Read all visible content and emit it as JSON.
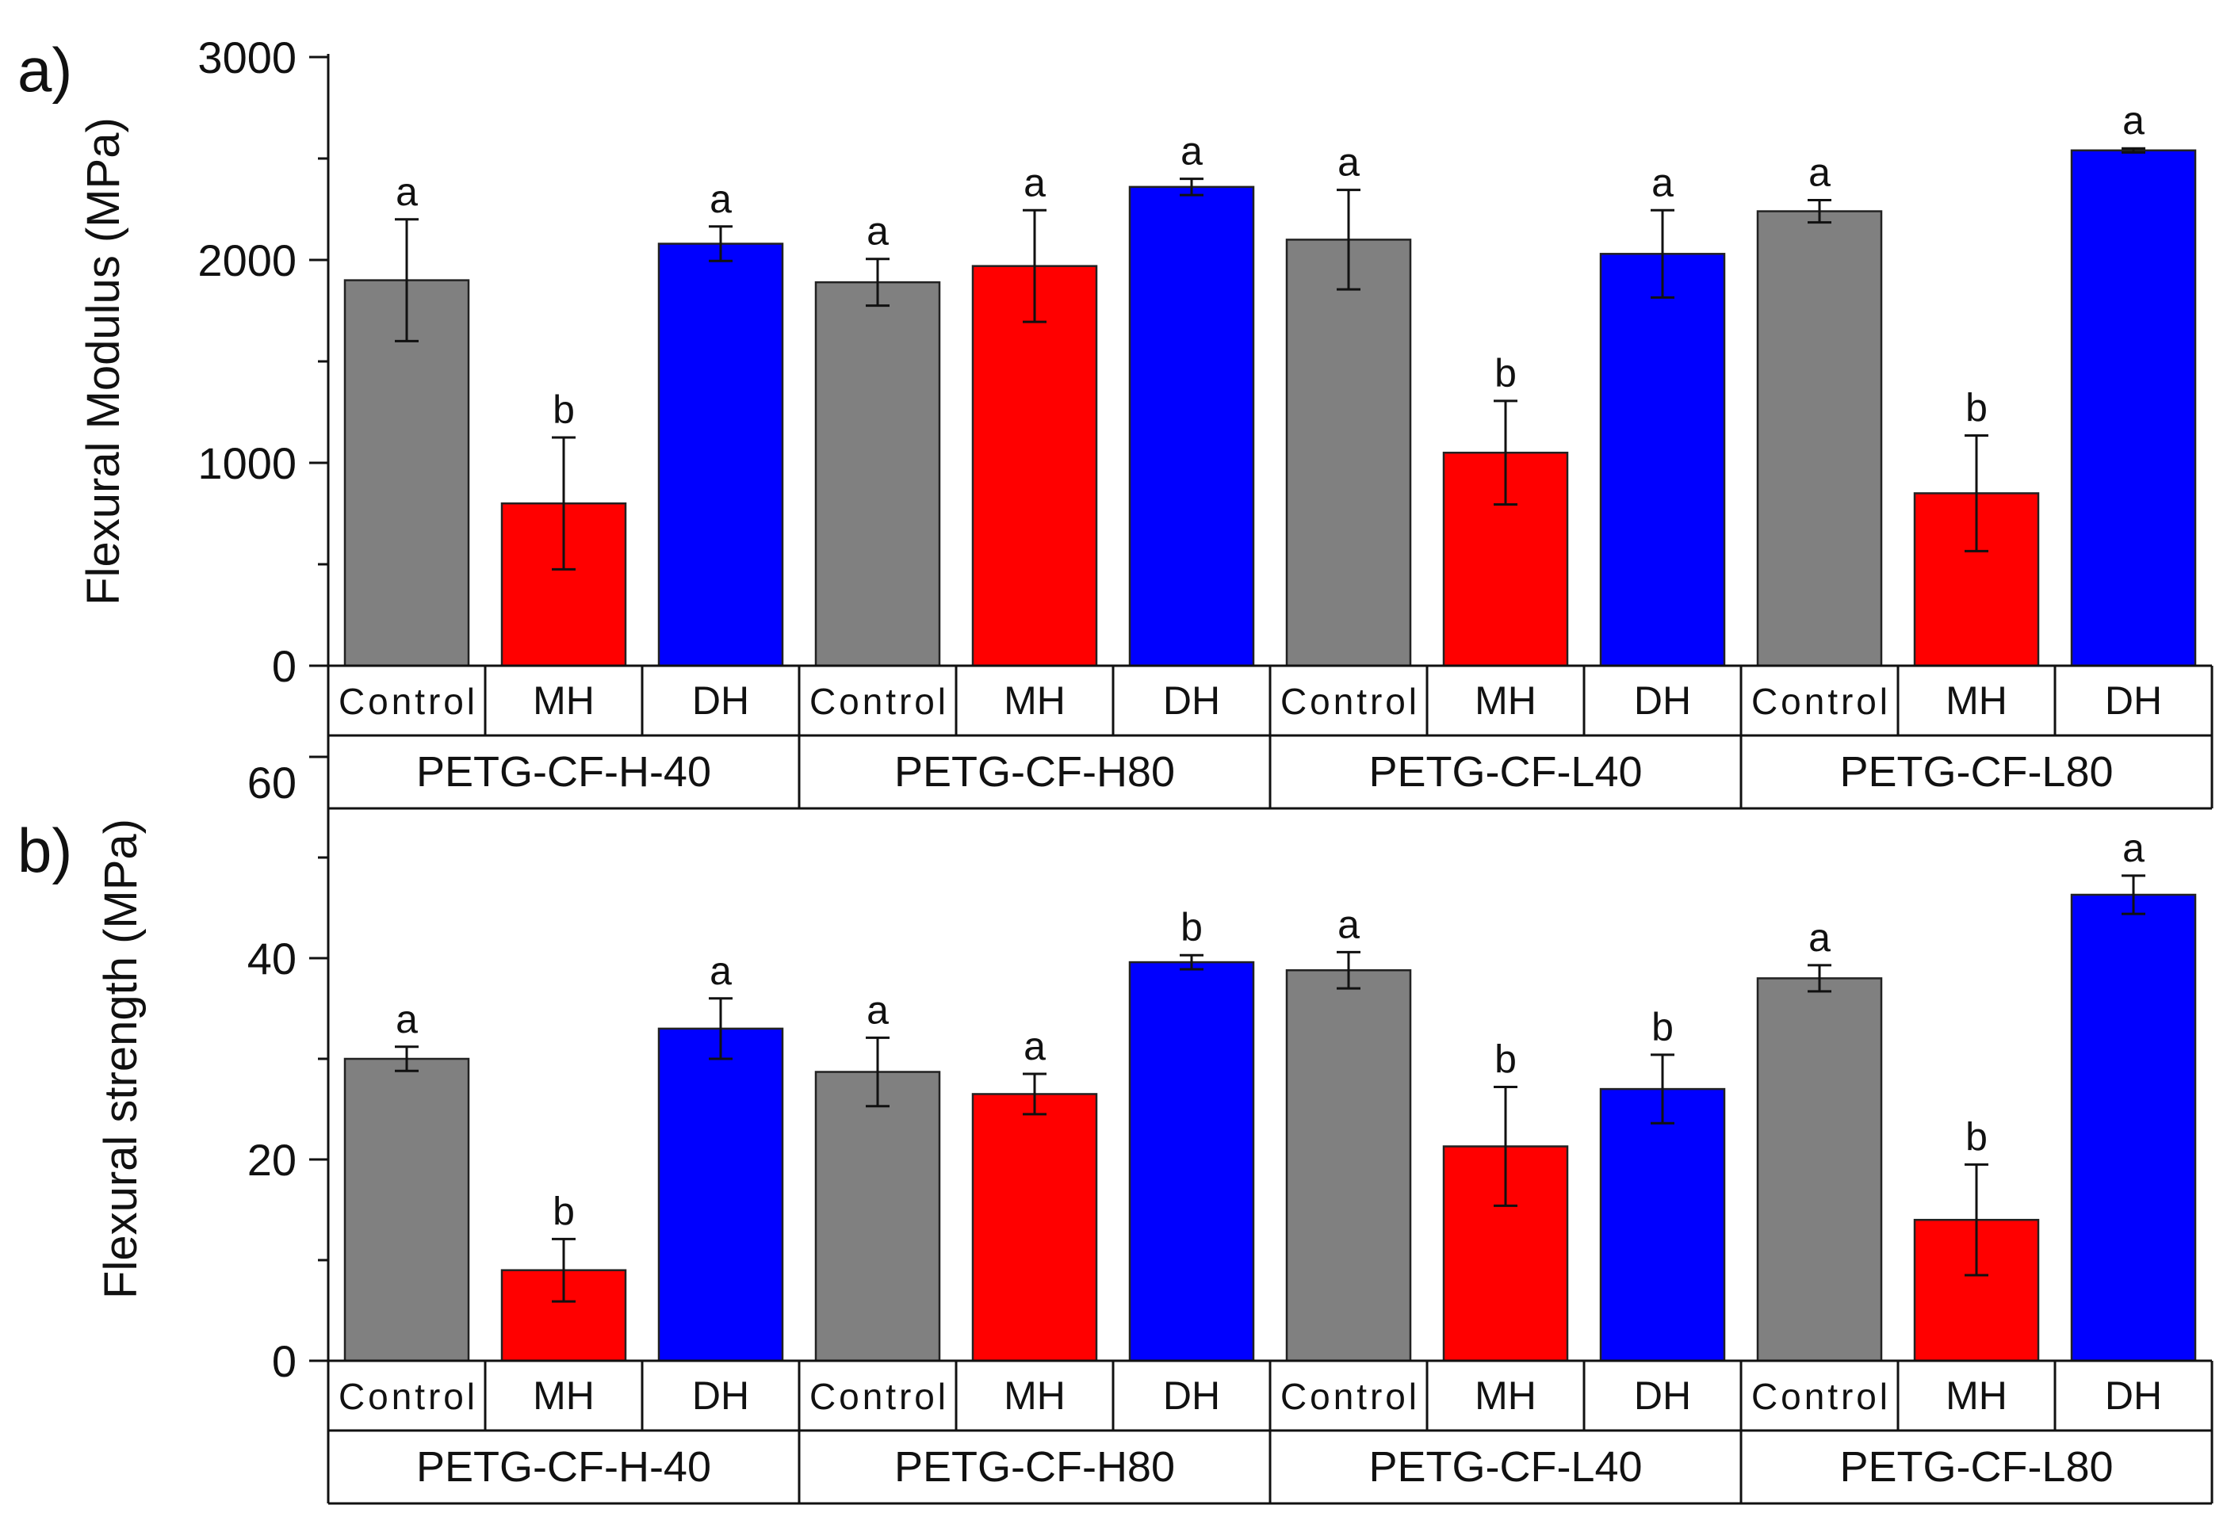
{
  "chart_data": [
    {
      "panel_label": "a)",
      "type": "bar",
      "ylabel": "Flexural Modulus (MPa)",
      "ylim": [
        0,
        3000
      ],
      "yticks": [
        0,
        1000,
        2000,
        3000
      ],
      "groups": [
        "PETG-CF-H-40",
        "PETG-CF-H80",
        "PETG-CF-L40",
        "PETG-CF-L80"
      ],
      "treatments": [
        "Control",
        "MH",
        "DH"
      ],
      "colors": {
        "Control": "#808080",
        "MH": "#ff0000",
        "DH": "#0000ff"
      },
      "series": [
        {
          "name": "Control",
          "values": [
            1900,
            1890,
            2100,
            2240
          ],
          "errors": [
            300,
            115,
            245,
            55
          ],
          "letters": [
            "a",
            "a",
            "a",
            "a"
          ]
        },
        {
          "name": "MH",
          "values": [
            800,
            1970,
            1050,
            850
          ],
          "errors": [
            325,
            275,
            255,
            285
          ],
          "letters": [
            "b",
            "a",
            "b",
            "b"
          ]
        },
        {
          "name": "DH",
          "values": [
            2080,
            2360,
            2030,
            2540
          ],
          "errors": [
            85,
            40,
            215,
            10
          ],
          "letters": [
            "a",
            "a",
            "a",
            "a"
          ]
        }
      ]
    },
    {
      "panel_label": "b)",
      "type": "bar",
      "ylabel": "Flexural strength (MPa)",
      "ylim": [
        0,
        60
      ],
      "yticks": [
        0,
        20,
        40,
        60
      ],
      "groups": [
        "PETG-CF-H-40",
        "PETG-CF-H80",
        "PETG-CF-L40",
        "PETG-CF-L80"
      ],
      "treatments": [
        "Control",
        "MH",
        "DH"
      ],
      "colors": {
        "Control": "#808080",
        "MH": "#ff0000",
        "DH": "#0000ff"
      },
      "series": [
        {
          "name": "Control",
          "values": [
            30,
            28.7,
            38.8,
            38
          ],
          "errors": [
            1.2,
            3.4,
            1.8,
            1.3
          ],
          "letters": [
            "a",
            "a",
            "a",
            "a"
          ]
        },
        {
          "name": "MH",
          "values": [
            9,
            26.5,
            21.3,
            14
          ],
          "errors": [
            3.1,
            2.0,
            5.9,
            5.5
          ],
          "letters": [
            "b",
            "a",
            "b",
            "b"
          ]
        },
        {
          "name": "DH",
          "values": [
            33,
            39.6,
            27,
            46.3
          ],
          "errors": [
            3.0,
            0.7,
            3.4,
            1.9
          ],
          "letters": [
            "a",
            "b",
            "b",
            "a"
          ]
        }
      ]
    }
  ]
}
